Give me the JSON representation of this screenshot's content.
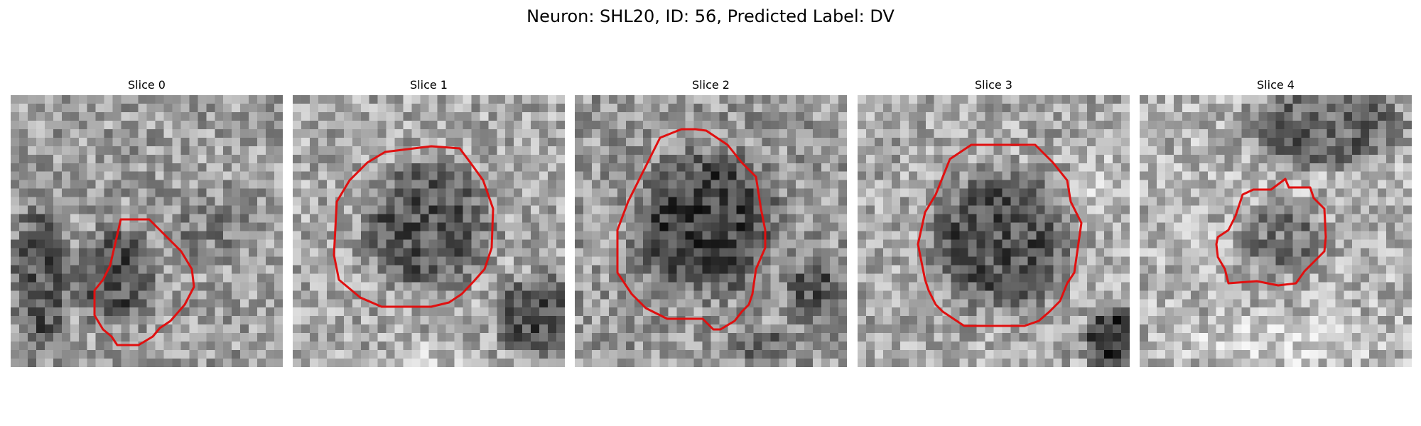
{
  "figure": {
    "title": "Neuron: SHL20, ID: 56, Predicted Label: DV"
  },
  "panels": [
    {
      "title": "Slice 0",
      "contour_color": "#e01010"
    },
    {
      "title": "Slice 1",
      "contour_color": "#e01010"
    },
    {
      "title": "Slice 2",
      "contour_color": "#e01010"
    },
    {
      "title": "Slice 3",
      "contour_color": "#e01010"
    },
    {
      "title": "Slice 4",
      "contour_color": "#e01010"
    }
  ],
  "colormap": "grayscale"
}
